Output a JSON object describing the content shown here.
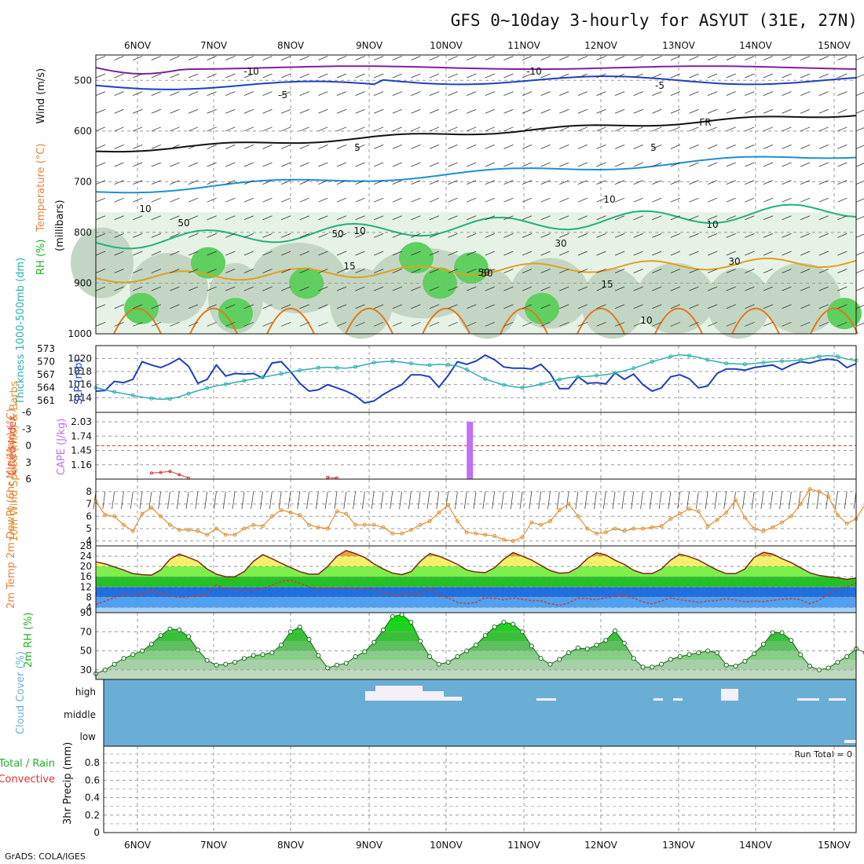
{
  "title": "GFS 0~10day 3-hourly for ASYUT (31E, 27N)",
  "footer": "GrADS: COLA/IGES",
  "run_total": "Run Total = 0",
  "colors": {
    "temperature": "#e8833a",
    "slp": "#1f3fbf",
    "thickness": "#2ab0b0",
    "rh": "#22b022",
    "cape": "#c070f0",
    "lifted_index": "#e03030",
    "wind10": "#e09030",
    "cloud": "#6aaed6"
  },
  "chart_data": [
    {
      "type": "line",
      "panel": "upper_air",
      "x": [
        "6NOV",
        "7NOV",
        "8NOV",
        "9NOV",
        "10NOV",
        "11NOV",
        "12NOV",
        "13NOV",
        "14NOV",
        "15NOV"
      ],
      "ylabel_parts": [
        "RH (%)",
        "Temperature (°C)",
        "Wind (m/s)"
      ],
      "ylabel_units": "(millibars)",
      "ylim": [
        1000,
        450
      ],
      "yticks": [
        "500",
        "600",
        "700",
        "800",
        "900",
        "1000"
      ],
      "contour_labels": [
        "-10",
        "-10",
        "-5",
        "-5",
        "FR",
        "5",
        "5",
        "10",
        "10",
        "15",
        "15",
        "10",
        "50",
        "50",
        "30",
        "50",
        "10",
        "10",
        "30",
        "50"
      ]
    },
    {
      "type": "line",
      "panel": "slp_thickness",
      "ylabel_left": "Thickness 1000-500mb (dm)",
      "ylabel_right": "SLP (mb)",
      "thickness_ticks": [
        "561",
        "564",
        "567",
        "570",
        "573"
      ],
      "slp_ticks": [
        "1014",
        "1016",
        "1018",
        "1020"
      ],
      "series": [
        {
          "name": "SLP (mb)",
          "values": [
            1015.0,
            1015.1,
            1016.5,
            1016.3,
            1016.8,
            1019.5,
            1019.0,
            1018.6,
            1019.2,
            1020.0,
            1018.8,
            1016.2,
            1016.8,
            1019.0,
            1017.3,
            1017.7,
            1017.6,
            1017.7,
            1017.0,
            1019.3,
            1019.5,
            1018.0,
            1016.2,
            1015.0,
            1015.2,
            1016.0,
            1015.5,
            1015.0,
            1014.3,
            1013.2,
            1013.5,
            1014.5,
            1015.3,
            1016.0,
            1017.5,
            1017.5,
            1017.2,
            1015.6,
            1017.4,
            1019.5,
            1019.1,
            1019.6,
            1020.5,
            1019.8,
            1018.7,
            1018.5,
            1018.5,
            1018.4,
            1019.1,
            1017.7,
            1015.4,
            1015.4,
            1017.2,
            1016.2,
            1016.3,
            1016.1,
            1017.8,
            1016.8,
            1017.6,
            1016.0,
            1015.0,
            1015.5,
            1017.2,
            1017.5,
            1016.9,
            1015.5,
            1015.8,
            1017.7,
            1018.4,
            1018.4,
            1018.2,
            1018.6,
            1018.8,
            1019.0,
            1018.3,
            1019.0,
            1019.5,
            1019.3,
            1019.7,
            1019.9,
            1019.7,
            1018.6,
            1019.2
          ]
        },
        {
          "name": "Thickness (dm)",
          "values": [
            564.0,
            563.5,
            563.0,
            562.6,
            562.2,
            561.8,
            561.5,
            561.3,
            561.4,
            561.9,
            562.6,
            563.3,
            563.9,
            564.4,
            564.8,
            565.2,
            565.6,
            566.0,
            566.4,
            566.8,
            567.2,
            567.6,
            568.0,
            568.3,
            568.6,
            568.7,
            568.6,
            568.5,
            568.8,
            569.3,
            569.8,
            570.0,
            570.1,
            569.9,
            569.6,
            569.3,
            569.2,
            569.4,
            569.3,
            569.0,
            568.2,
            567.0,
            566.0,
            565.3,
            564.6,
            564.2,
            564.0,
            564.3,
            564.8,
            565.4,
            565.9,
            566.3,
            566.5,
            566.6,
            566.8,
            567.0,
            567.4,
            567.9,
            568.5,
            569.2,
            570.0,
            570.6,
            571.2,
            571.6,
            571.4,
            571.0,
            570.4,
            570.0,
            569.6,
            569.5,
            569.4,
            569.6,
            569.8,
            570.0,
            570.1,
            570.2,
            570.4,
            570.8,
            571.2,
            571.4,
            571.2,
            570.6,
            570.3
          ]
        }
      ]
    },
    {
      "type": "bar",
      "panel": "stability",
      "ylabel_left": "Lifted Index",
      "ylabel_right": "CAPE (J/kg)",
      "li_ticks": [
        "-6",
        "-3",
        "0",
        "3",
        "6"
      ],
      "cape_ticks": [
        "2.03",
        "1.74",
        "1.45",
        "1.16"
      ],
      "cape_bar_index": 40,
      "cape_bar_value": 2.03,
      "lifted_index_points": [
        [
          6,
          4.9
        ],
        [
          7,
          4.8
        ],
        [
          8,
          4.6
        ],
        [
          9,
          5.2
        ],
        [
          10,
          5.8
        ],
        [
          25,
          5.7
        ],
        [
          26,
          5.8
        ]
      ]
    },
    {
      "type": "line",
      "panel": "wind10",
      "ylabel": "10m Wind Speed (m/s) & Barbs",
      "ylim": [
        4,
        8
      ],
      "yticks": [
        "4",
        "5",
        "6",
        "7",
        "8"
      ],
      "series": [
        {
          "name": "10m Wind Speed",
          "values": [
            7.2,
            6.1,
            6.0,
            5.3,
            4.8,
            6.2,
            6.7,
            6.0,
            5.3,
            4.9,
            4.9,
            4.8,
            4.5,
            5.0,
            4.5,
            4.5,
            5.0,
            5.3,
            5.2,
            6.0,
            6.5,
            6.3,
            6.1,
            5.3,
            5.1,
            5.0,
            6.4,
            6.2,
            5.3,
            5.3,
            5.3,
            5.1,
            4.6,
            4.6,
            4.9,
            5.3,
            5.6,
            6.3,
            6.9,
            5.6,
            4.7,
            4.6,
            4.5,
            4.4,
            4.1,
            4.0,
            4.3,
            5.5,
            5.3,
            5.6,
            6.5,
            7.0,
            6.0,
            5.0,
            4.6,
            4.7,
            5.0,
            4.8,
            5.0,
            5.0,
            5.1,
            5.2,
            5.8,
            6.2,
            6.6,
            6.4,
            5.2,
            5.7,
            6.3,
            7.3,
            5.9,
            5.0,
            4.8,
            5.1,
            5.5,
            6.0,
            7.0,
            8.2,
            8.0,
            7.6,
            6.1,
            5.4,
            5.8,
            7.0
          ]
        }
      ]
    },
    {
      "type": "area",
      "panel": "temp2m",
      "ylabel": "2m Temp 2m DewPt (6hr Min/Max) (°C)",
      "ylim": [
        4,
        28
      ],
      "yticks": [
        "4",
        "8",
        "12",
        "16",
        "20",
        "24",
        "28"
      ],
      "series": [
        {
          "name": "2m Temp",
          "values": [
            21.8,
            21.0,
            19.8,
            18.6,
            17.2,
            16.8,
            16.6,
            18.6,
            22.8,
            24.8,
            23.5,
            22.0,
            19.0,
            17.0,
            16.0,
            16.0,
            18.0,
            22.0,
            24.6,
            23.0,
            21.2,
            19.6,
            18.0,
            17.0,
            17.0,
            20.0,
            24.0,
            26.2,
            25.0,
            23.5,
            21.0,
            19.0,
            17.4,
            16.8,
            18.0,
            22.0,
            25.0,
            24.0,
            22.5,
            20.8,
            18.6,
            17.8,
            17.6,
            19.5,
            22.8,
            25.4,
            24.0,
            22.5,
            20.4,
            18.4,
            17.4,
            17.6,
            19.6,
            23.0,
            25.3,
            24.5,
            22.4,
            20.8,
            18.5,
            17.3,
            17.2,
            19.0,
            22.5,
            24.8,
            23.8,
            22.5,
            20.5,
            18.6,
            17.2,
            17.2,
            19.0,
            23.5,
            25.5,
            24.8,
            23.0,
            21.5,
            19.5,
            17.5,
            16.5,
            16.0,
            15.6,
            15.0,
            15.5
          ]
        },
        {
          "name": "2m DewPt",
          "values": [
            5.3,
            6.5,
            8.0,
            9.2,
            8.7,
            9.5,
            10.3,
            9.8,
            8.5,
            8.0,
            8.2,
            8.7,
            9.2,
            12.8,
            11.2,
            11.0,
            10.6,
            10.8,
            11.5,
            12.7,
            14.2,
            14.6,
            13.5,
            12.0,
            11.5,
            11.7,
            11.6,
            11.4,
            11.5,
            11.0,
            11.2,
            9.7,
            9.0,
            9.2,
            9.4,
            9.5,
            11.5,
            8.8,
            7.8,
            6.0,
            5.5,
            6.0,
            7.8,
            7.6,
            7.0,
            7.7,
            7.2,
            6.7,
            6.6,
            5.5,
            4.8,
            5.8,
            7.6,
            7.5,
            7.0,
            7.8,
            8.5,
            8.8,
            7.7,
            6.2,
            5.5,
            6.5,
            7.8,
            7.0,
            6.6,
            6.0,
            6.5,
            6.7,
            7.5,
            6.9,
            6.2,
            6.5,
            6.3,
            6.8,
            7.2,
            7.5,
            7.0,
            5.5,
            6.8,
            9.2,
            11.5,
            12.0,
            13.5
          ]
        }
      ]
    },
    {
      "type": "area",
      "panel": "rh2m",
      "ylabel": "2m RH (%)",
      "ylim": [
        20,
        90
      ],
      "yticks": [
        "30",
        "50",
        "70",
        "90"
      ],
      "series": [
        {
          "name": "2m RH",
          "values": [
            26,
            30,
            36,
            42,
            46,
            50,
            57,
            66,
            73,
            72,
            65,
            51,
            40,
            35,
            36,
            38,
            42,
            45,
            46,
            48,
            56,
            70,
            75,
            62,
            45,
            32,
            35,
            37,
            44,
            49,
            59,
            72,
            86,
            88,
            80,
            60,
            44,
            36,
            38,
            44,
            50,
            56,
            66,
            75,
            80,
            78,
            70,
            55,
            42,
            36,
            41,
            48,
            53,
            52,
            56,
            61,
            71,
            58,
            42,
            33,
            33,
            36,
            41,
            44,
            46,
            48,
            50,
            48,
            35,
            34,
            39,
            47,
            57,
            69,
            69,
            61,
            46,
            34,
            30,
            32,
            38,
            44,
            52,
            48
          ]
        }
      ]
    },
    {
      "type": "bar",
      "panel": "cloud_cover",
      "ylabel": "Cloud Cover (%)",
      "ylabel_levels": [
        "high",
        "middle",
        "low"
      ]
    },
    {
      "type": "bar",
      "panel": "precip",
      "ylabel_left": "Total / Rain Convective",
      "ylabel": "3hr Precip (mm)",
      "ylim": [
        0,
        0.9
      ],
      "yticks": [
        "0",
        "0.2",
        "0.4",
        "0.6",
        "0.8"
      ]
    }
  ]
}
